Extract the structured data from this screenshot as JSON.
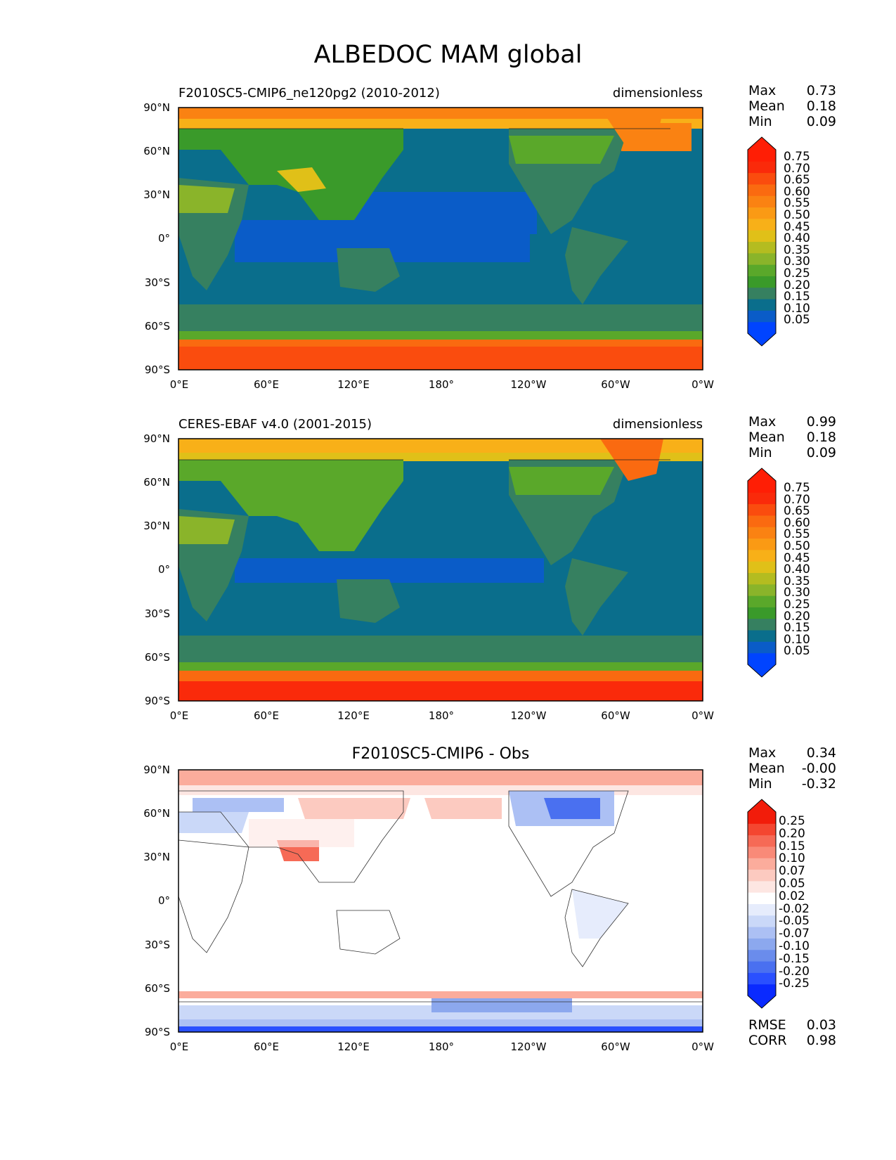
{
  "figure": {
    "title": "ALBEDOC MAM global"
  },
  "lat_labels": [
    "90°N",
    "60°N",
    "30°N",
    "0°",
    "30°S",
    "60°S",
    "90°S"
  ],
  "lon_labels": [
    "0°E",
    "60°E",
    "120°E",
    "180°",
    "120°W",
    "60°W",
    "0°W"
  ],
  "panels": [
    {
      "left_title": "F2010SC5-CMIP6_ne120pg2 (2010-2012)",
      "right_title": "dimensionless",
      "stats": [
        {
          "label": "Max",
          "value": "0.73"
        },
        {
          "label": "Mean",
          "value": "0.18"
        },
        {
          "label": "Min",
          "value": "0.09"
        }
      ],
      "colorbar_labels": [
        "0.75",
        "0.70",
        "0.65",
        "0.60",
        "0.55",
        "0.50",
        "0.45",
        "0.40",
        "0.35",
        "0.30",
        "0.25",
        "0.20",
        "0.15",
        "0.10",
        "0.05"
      ]
    },
    {
      "left_title": "CERES-EBAF v4.0 (2001-2015)",
      "right_title": "dimensionless",
      "stats": [
        {
          "label": "Max",
          "value": "0.99"
        },
        {
          "label": "Mean",
          "value": "0.18"
        },
        {
          "label": "Min",
          "value": "0.09"
        }
      ],
      "colorbar_labels": [
        "0.75",
        "0.70",
        "0.65",
        "0.60",
        "0.55",
        "0.50",
        "0.45",
        "0.40",
        "0.35",
        "0.30",
        "0.25",
        "0.20",
        "0.15",
        "0.10",
        "0.05"
      ]
    },
    {
      "center_title": "F2010SC5-CMIP6 - Obs",
      "stats": [
        {
          "label": "Max",
          "value": "0.34"
        },
        {
          "label": "Mean",
          "value": "-0.00"
        },
        {
          "label": "Min",
          "value": "-0.32"
        }
      ],
      "colorbar_labels": [
        "0.25",
        "0.20",
        "0.15",
        "0.10",
        "0.07",
        "0.05",
        "0.02",
        "-0.02",
        "-0.05",
        "-0.07",
        "-0.10",
        "-0.15",
        "-0.20",
        "-0.25"
      ],
      "bottom_stats": [
        {
          "label": "RMSE",
          "value": "0.03"
        },
        {
          "label": "CORR",
          "value": "0.98"
        }
      ]
    }
  ],
  "colors": {
    "abs_scale": [
      "#0044ff",
      "#0a5cc8",
      "#0a6e8c",
      "#368060",
      "#3a9a2a",
      "#5aa82a",
      "#8ab42a",
      "#b4bc20",
      "#e0c018",
      "#f8b018",
      "#fa9a14",
      "#fa8212",
      "#fa6a10",
      "#fa4c0e",
      "#fa2a0a",
      "#ff1e05"
    ],
    "diff_scale": [
      "#0a2aff",
      "#2a50ff",
      "#4a70f0",
      "#6a8cec",
      "#8ca8ee",
      "#acc0f4",
      "#cad8f8",
      "#e6ecfc",
      "#ffffff",
      "#fde6e2",
      "#fccac0",
      "#fbac9c",
      "#f98a78",
      "#f66a56",
      "#f44630",
      "#f21c0a"
    ],
    "ocean_tropics": "#0a5cc8",
    "ocean_mid": "#0a6e8c",
    "southern_ocean": "#368060"
  }
}
